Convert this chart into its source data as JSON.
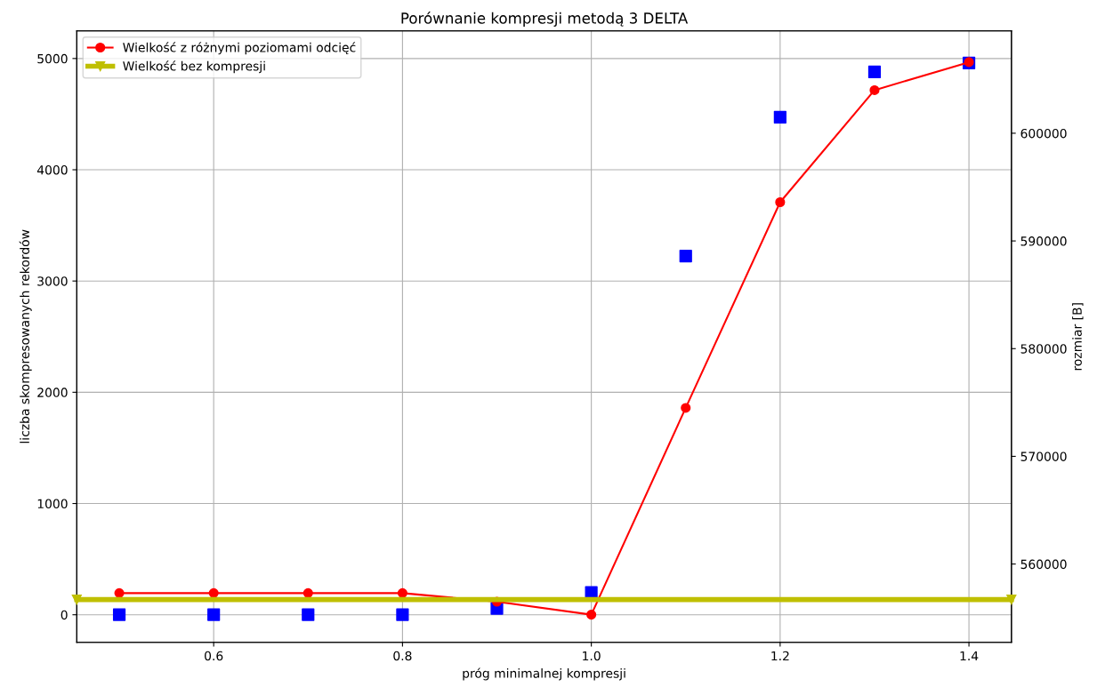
{
  "chart_data": {
    "type": "line",
    "title": "Porównanie kompresji metodą 3 DELTA",
    "xlabel": "próg minimalnej kompresji",
    "ylabel": "liczba skompresowanych rekordów",
    "y2label": "rozmiar [B]",
    "x": [
      0.5,
      0.6,
      0.7,
      0.8,
      0.9,
      1.0,
      1.1,
      1.2,
      1.3,
      1.4
    ],
    "series": [
      {
        "type": "scatter",
        "color": "#0000ff",
        "marker": "square",
        "values": [
          0,
          0,
          0,
          0,
          56,
          200,
          3224,
          4472,
          4880,
          4960
        ]
      },
      {
        "name": "Wielkość z różnymi poziomami odcięć",
        "color": "#ff0000",
        "marker": "circle",
        "axis": "y2",
        "values": [
          557300,
          557300,
          557300,
          557300,
          556500,
          555300,
          574500,
          593600,
          604000,
          606600
        ]
      },
      {
        "name": "Wielkość bez kompresji",
        "color": "#bfbf00",
        "marker": "triangle",
        "axis": "y2",
        "x": [
          0.455,
          1.445
        ],
        "values": [
          556700,
          556700
        ]
      }
    ],
    "xlim": [
      0.455,
      1.445
    ],
    "xticks": [
      {
        "value": 0.6,
        "label": "0.6"
      },
      {
        "value": 0.8,
        "label": "0.8"
      },
      {
        "value": 1.0,
        "label": "1.0"
      },
      {
        "value": 1.2,
        "label": "1.2"
      },
      {
        "value": 1.4,
        "label": "1.4"
      }
    ],
    "ylim": [
      -248,
      5248
    ],
    "yticks": [
      0,
      1000,
      2000,
      3000,
      4000,
      5000
    ],
    "y2lim": [
      552730,
      609500
    ],
    "y2ticks": [
      560000,
      570000,
      580000,
      590000,
      600000
    ],
    "grid": true,
    "legend": "top left"
  }
}
